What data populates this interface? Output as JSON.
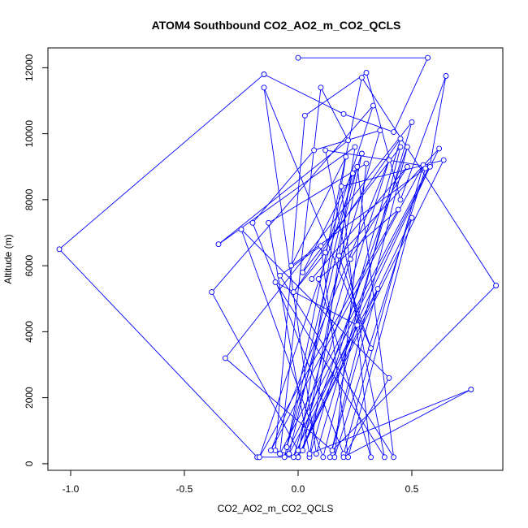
{
  "chart_data": {
    "type": "line",
    "title": "ATOM4 Southbound CO2_AO2_m_CO2_QCLS",
    "xlabel": "CO2_AO2_m_CO2_QCLS",
    "ylabel": "Altitude (m)",
    "xlim": [
      -1.1,
      0.9
    ],
    "ylim": [
      -200,
      12600
    ],
    "xticks": [
      -1.0,
      -0.5,
      0.0,
      0.5
    ],
    "xtick_labels": [
      "-1.0",
      "-0.5",
      "0.0",
      "0.5"
    ],
    "yticks": [
      0,
      2000,
      4000,
      6000,
      8000,
      10000,
      12000
    ],
    "ytick_labels": [
      "0",
      "2000",
      "4000",
      "6000",
      "8000",
      "10000",
      "12000"
    ],
    "markers": "open-circle",
    "grid": false,
    "series_color": "#0000ff",
    "series": [
      {
        "x": [
          0.0,
          0.57,
          0.42,
          0.2,
          -0.15,
          -1.05,
          -0.18,
          0.0,
          -0.1,
          0.03,
          0.3,
          0.45,
          0.65,
          0.58,
          -0.08,
          0.1,
          0.22,
          -0.35,
          0.25,
          0.05,
          0.45,
          -0.02,
          0.12,
          0.33,
          -0.38,
          0.0,
          0.4,
          -0.12,
          0.55,
          0.2,
          -0.2,
          0.07,
          0.36,
          -0.05,
          0.28,
          0.87,
          0.15,
          -0.32,
          0.5,
          0.08,
          -0.15,
          0.32,
          0.18,
          0.62,
          -0.06,
          0.24,
          0.02,
          0.45,
          0.11,
          -0.25,
          0.4,
          0.2,
          0.76,
          0.05,
          -0.13,
          0.3,
          0.16,
          0.56,
          -0.03,
          0.21,
          0.0,
          0.5,
          0.22,
          0.1,
          -0.08,
          0.42,
          0.26,
          -0.04,
          0.35,
          0.14,
          0.48,
          0.02,
          0.28,
          -0.17,
          0.44,
          0.09,
          0.32,
          0.19,
          0.64,
          0.0,
          0.26,
          -0.1,
          0.38,
          0.12,
          0.58,
          -0.02,
          0.23,
          0.48,
          0.06
        ],
        "y": [
          12300,
          12300,
          10050,
          10600,
          11800,
          6500,
          200,
          200,
          400,
          10550,
          11850,
          8000,
          11750,
          9050,
          300,
          11400,
          9800,
          6650,
          9600,
          200,
          9850,
          5200,
          6400,
          10850,
          5200,
          400,
          9200,
          400,
          9050,
          300,
          7300,
          9500,
          10100,
          500,
          11700,
          5400,
          400,
          3200,
          10350,
          300,
          11400,
          3500,
          6300,
          9550,
          200,
          8800,
          5800,
          9600,
          200,
          7100,
          2600,
          200,
          2250,
          300,
          7300,
          9100,
          200,
          8950,
          6000,
          9300,
          200,
          7450,
          200,
          6600,
          5700,
          200,
          9000,
          300,
          5300,
          200,
          9600,
          400,
          9400,
          200,
          7700,
          5600,
          200,
          8400,
          9200,
          200,
          4200,
          5500,
          200,
          9500,
          9000,
          200,
          6200,
          9000,
          5600
        ]
      }
    ]
  }
}
